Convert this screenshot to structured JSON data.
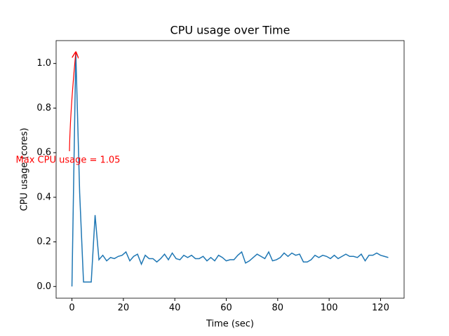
{
  "chart_data": {
    "type": "line",
    "title": "CPU usage over Time",
    "x_label": "Time (sec)",
    "y_label": "CPU usage (cores)",
    "annotation": "Max CPU usage = 1.05",
    "annotation_color": "#ff0000",
    "x": [
      0,
      1.5,
      3,
      4.5,
      6,
      7.5,
      9,
      10.5,
      12,
      13.5,
      15,
      16.5,
      18,
      19.5,
      21,
      22.5,
      24,
      25.5,
      27,
      28.5,
      30,
      31.5,
      33,
      34.5,
      36,
      37.5,
      39,
      40.5,
      42,
      43.5,
      45,
      46.5,
      48,
      49.5,
      51,
      52.5,
      54,
      55.5,
      57,
      58.5,
      60,
      61.5,
      63,
      64.5,
      66,
      67.5,
      69,
      70.5,
      72,
      73.5,
      75,
      76.5,
      78,
      79.5,
      81,
      82.5,
      84,
      85.5,
      87,
      88.5,
      90,
      91.5,
      93,
      94.5,
      96,
      97.5,
      99,
      100.5,
      102,
      103.5,
      105,
      106.5,
      108,
      109.5,
      111,
      112.5,
      114,
      115.5,
      117,
      118.5,
      120,
      121.5,
      123
    ],
    "values": [
      0,
      1.05,
      0.42,
      0.02,
      0.02,
      0.02,
      0.32,
      0.12,
      0.14,
      0.115,
      0.13,
      0.125,
      0.135,
      0.14,
      0.155,
      0.115,
      0.135,
      0.145,
      0.1,
      0.14,
      0.125,
      0.125,
      0.11,
      0.125,
      0.145,
      0.12,
      0.15,
      0.125,
      0.12,
      0.14,
      0.13,
      0.14,
      0.125,
      0.125,
      0.135,
      0.115,
      0.13,
      0.115,
      0.14,
      0.13,
      0.115,
      0.12,
      0.12,
      0.14,
      0.155,
      0.105,
      0.115,
      0.13,
      0.145,
      0.135,
      0.125,
      0.155,
      0.115,
      0.12,
      0.13,
      0.15,
      0.135,
      0.15,
      0.14,
      0.145,
      0.11,
      0.11,
      0.12,
      0.14,
      0.13,
      0.14,
      0.135,
      0.125,
      0.14,
      0.125,
      0.135,
      0.145,
      0.135,
      0.135,
      0.13,
      0.145,
      0.115,
      0.14,
      0.14,
      0.15,
      0.14,
      0.135,
      0.13
    ],
    "color": "#1f77b4",
    "xlim": [
      -6.15,
      129.15
    ],
    "xticks": [
      0,
      20,
      40,
      60,
      80,
      100,
      120
    ],
    "ylim": [
      -0.0525,
      1.1025
    ],
    "yticks": [
      {
        "value": 0,
        "label": "0.0"
      },
      0.2,
      0.4,
      0.6,
      0.8,
      {
        "value": 1,
        "label": "1.0"
      }
    ],
    "grid": false
  }
}
